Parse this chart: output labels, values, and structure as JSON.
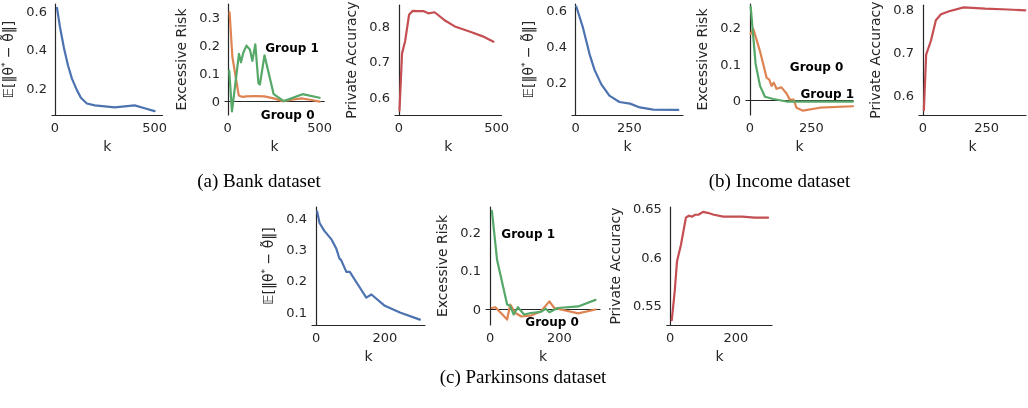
{
  "chart_data": [
    {
      "type": "line",
      "ylabel": "𝔼[‖θ$^{*}$ − θ̃‖]",
      "xlabel": "k",
      "xlim": [
        -15,
        540
      ],
      "xticks": [
        0,
        500
      ],
      "ylim": [
        0.06,
        0.64
      ],
      "yticks": [
        0.2,
        0.4,
        0.6
      ],
      "series": [
        {
          "color": "#4c72b0",
          "x": [
            10,
            25,
            45,
            65,
            85,
            110,
            130,
            160,
            200,
            250,
            300,
            350,
            400,
            450,
            500
          ],
          "values": [
            0.62,
            0.52,
            0.41,
            0.32,
            0.25,
            0.19,
            0.15,
            0.12,
            0.11,
            0.105,
            0.1,
            0.105,
            0.11,
            0.095,
            0.08
          ]
        }
      ]
    },
    {
      "type": "line",
      "ylabel": "Excessive Risk",
      "xlabel": "k",
      "xlim": [
        -15,
        525
      ],
      "xticks": [
        0,
        500
      ],
      "ylim": [
        -0.05,
        0.35
      ],
      "yticks": [
        0.0,
        0.1,
        0.2,
        0.3
      ],
      "series": [
        {
          "name": "Group 0",
          "color": "#dd8452",
          "x": [
            10,
            25,
            45,
            60,
            80,
            100,
            150,
            200,
            250,
            300,
            350,
            400,
            450,
            500
          ],
          "values": [
            0.32,
            0.16,
            0.08,
            0.02,
            0.015,
            0.017,
            0.018,
            0.017,
            0.01,
            0.0,
            0.005,
            0.01,
            0.005,
            -0.002
          ]
        },
        {
          "name": "Group 1",
          "color": "#55a868",
          "x": [
            8,
            23,
            61,
            72,
            85,
            102,
            121,
            134,
            150,
            167,
            175,
            200,
            250,
            305,
            407,
            500
          ],
          "values": [
            0.11,
            -0.037,
            0.17,
            0.14,
            0.175,
            0.2,
            0.185,
            0.145,
            0.205,
            0.065,
            0.06,
            0.165,
            0.025,
            0.0,
            0.025,
            0.012
          ]
        }
      ],
      "annotations": [
        "(a) Bank dataset"
      ]
    },
    {
      "type": "line",
      "ylabel": "Private Accuracy",
      "xlabel": "k",
      "xlim": [
        -20,
        525
      ],
      "xticks": [
        0,
        500
      ],
      "ylim": [
        0.55,
        0.86
      ],
      "yticks": [
        0.6,
        0.7,
        0.8
      ],
      "series": [
        {
          "color": "#c44e52",
          "x": [
            3,
            16,
            32,
            52,
            71,
            95,
            127,
            151,
            183,
            238,
            286,
            365,
            429,
            484
          ],
          "values": [
            0.563,
            0.724,
            0.759,
            0.833,
            0.844,
            0.843,
            0.843,
            0.837,
            0.84,
            0.816,
            0.8,
            0.785,
            0.772,
            0.757
          ]
        }
      ]
    },
    {
      "type": "line",
      "ylabel": "𝔼[‖θ$^{*}$ − θ̃‖]",
      "xlabel": "k",
      "xlim": [
        -17,
        500
      ],
      "xticks": [
        0,
        250
      ],
      "ylim": [
        0.02,
        0.635
      ],
      "yticks": [
        0.2,
        0.4,
        0.6
      ],
      "series": [
        {
          "color": "#4c72b0",
          "x": [
            3,
            34,
            65,
            88,
            119,
            157,
            204,
            253,
            299,
            361,
            478
          ],
          "values": [
            0.621,
            0.504,
            0.356,
            0.27,
            0.191,
            0.127,
            0.092,
            0.083,
            0.062,
            0.05,
            0.048
          ]
        }
      ]
    },
    {
      "type": "line",
      "ylabel": "Excessive Risk",
      "xlabel": "k",
      "xlim": [
        -16,
        419
      ],
      "xticks": [
        0,
        250
      ],
      "ylim": [
        -0.04,
        0.265
      ],
      "yticks": [
        0.0,
        0.1,
        0.2
      ],
      "series": [
        {
          "name": "Group 0",
          "color": "#dd8452",
          "x": [
            3,
            14,
            41,
            68,
            78,
            88,
            97,
            108,
            128,
            149,
            162,
            178,
            189,
            216,
            284,
            419
          ],
          "values": [
            0.183,
            0.196,
            0.135,
            0.062,
            0.058,
            0.04,
            0.049,
            0.032,
            0.036,
            0.019,
            0.002,
            0.002,
            -0.02,
            -0.028,
            -0.02,
            -0.016
          ]
        },
        {
          "name": "Group 1",
          "color": "#55a868",
          "x": [
            3,
            23,
            41,
            61,
            95,
            149,
            284,
            419
          ],
          "values": [
            0.258,
            0.101,
            0.04,
            0.01,
            0.004,
            -0.003,
            -0.003,
            -0.003
          ]
        }
      ],
      "annotations": [
        "(b) Income dataset"
      ]
    },
    {
      "type": "line",
      "ylabel": "Private Accuracy",
      "xlabel": "k",
      "xlim": [
        -15,
        404
      ],
      "xticks": [
        0,
        250
      ],
      "ylim": [
        0.555,
        0.81
      ],
      "yticks": [
        0.6,
        0.7,
        0.8
      ],
      "series": [
        {
          "color": "#c44e52",
          "x": [
            4,
            13,
            32,
            51,
            71,
            103,
            160,
            244,
            333,
            401
          ],
          "values": [
            0.566,
            0.695,
            0.728,
            0.775,
            0.789,
            0.796,
            0.805,
            0.802,
            0.8,
            0.798
          ]
        }
      ]
    },
    {
      "type": "line",
      "ylabel": "𝔼[‖θ$^{*}$ − θ̃‖]",
      "xlabel": "k",
      "xlim": [
        -12,
        317
      ],
      "xticks": [
        0,
        200
      ],
      "ylim": [
        0.06,
        0.435
      ],
      "yticks": [
        0.1,
        0.2,
        0.3,
        0.4
      ],
      "series": [
        {
          "color": "#4c72b0",
          "x": [
            3,
            10,
            24,
            44,
            59,
            68,
            73,
            88,
            98,
            122,
            146,
            161,
            200,
            244,
            302
          ],
          "values": [
            0.421,
            0.384,
            0.359,
            0.333,
            0.302,
            0.271,
            0.266,
            0.229,
            0.229,
            0.188,
            0.147,
            0.157,
            0.121,
            0.1,
            0.077
          ]
        }
      ]
    },
    {
      "type": "line",
      "ylabel": "Excessive Risk",
      "xlabel": "k",
      "xlim": [
        -12,
        317
      ],
      "xticks": [
        0,
        200
      ],
      "ylim": [
        -0.04,
        0.265
      ],
      "yticks": [
        0.0,
        0.1,
        0.2
      ],
      "series": [
        {
          "name": "Group 0",
          "color": "#dd8452",
          "x": [
            5,
            15,
            49,
            58,
            73,
            90,
            120,
            146,
            171,
            185,
            254,
            304
          ],
          "values": [
            0.004,
            0.006,
            -0.026,
            0.013,
            -0.009,
            -0.018,
            -0.015,
            -0.005,
            0.021,
            0.004,
            -0.01,
            0.0
          ]
        },
        {
          "name": "Group 1",
          "color": "#55a868",
          "x": [
            5,
            20,
            49,
            58,
            68,
            80,
            98,
            117,
            146,
            161,
            171,
            195,
            254,
            304
          ],
          "values": [
            0.255,
            0.128,
            0.013,
            0.009,
            -0.013,
            0.006,
            -0.013,
            -0.009,
            -0.006,
            0.002,
            -0.007,
            0.004,
            0.008,
            0.025
          ]
        }
      ],
      "annotations": [
        "(c) Parkinsons dataset"
      ]
    },
    {
      "type": "line",
      "ylabel": "Private Accuracy",
      "xlabel": "k",
      "xlim": [
        -10,
        310
      ],
      "xticks": [
        0,
        200
      ],
      "ylim": [
        0.53,
        0.652
      ],
      "yticks": [
        0.55,
        0.6,
        0.65
      ],
      "series": [
        {
          "color": "#c44e52",
          "x": [
            5,
            14,
            21,
            33,
            48,
            57,
            67,
            76,
            86,
            100,
            114,
            133,
            162,
            219,
            257,
            298
          ],
          "values": [
            0.535,
            0.565,
            0.596,
            0.613,
            0.641,
            0.643,
            0.642,
            0.644,
            0.644,
            0.647,
            0.646,
            0.644,
            0.642,
            0.642,
            0.641,
            0.641
          ]
        }
      ]
    }
  ]
}
